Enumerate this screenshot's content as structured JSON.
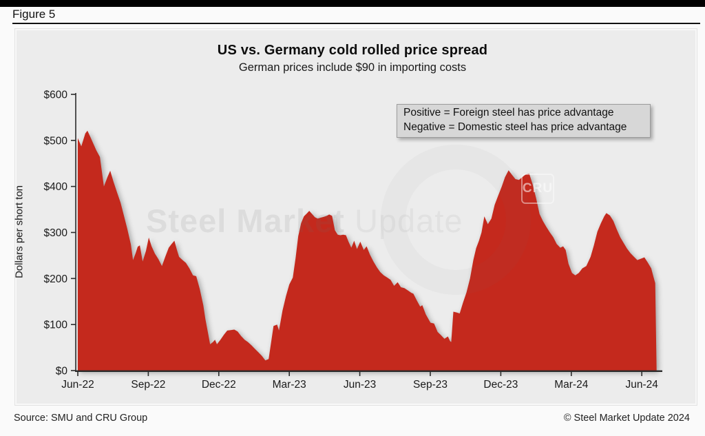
{
  "figure_label": "Figure 5",
  "header": {
    "title": "US vs. Germany cold rolled price spread",
    "subtitle": "German prices include $90 in importing costs"
  },
  "legend_note": {
    "line1": "Positive = Foreign steel has price advantage",
    "line2": "Negative = Domestic steel has price advantage"
  },
  "watermark": {
    "text_bold": "Steel Market",
    "text_light": "Update",
    "badge": "CRU"
  },
  "footer": {
    "source": "Source: SMU and CRU Group",
    "copyright": "© Steel Market Update 2024"
  },
  "chart_data": {
    "type": "area",
    "series_name": "US minus Germany cold rolled price spread",
    "title": "US vs. Germany cold rolled price spread",
    "subtitle": "German prices include $90 in importing costs",
    "ylabel": "Dollars per short ton",
    "ylim": [
      0,
      600
    ],
    "ytick_labels": [
      "$0",
      "$100",
      "$200",
      "$300",
      "$400",
      "$500",
      "$600"
    ],
    "xtick_labels": [
      "Jun-22",
      "Sep-22",
      "Dec-22",
      "Mar-23",
      "Jun-23",
      "Sep-23",
      "Dec-23",
      "Mar-24",
      "Jun-24"
    ],
    "x_unit": "months_since_jun_2022",
    "grid": false,
    "legend_position": "top-right",
    "fill_color": "#c4291d",
    "plot_background": "#ececec",
    "points": [
      [
        0,
        505
      ],
      [
        0.15,
        487
      ],
      [
        0.32,
        515
      ],
      [
        0.41,
        521
      ],
      [
        0.53,
        508
      ],
      [
        0.65,
        494
      ],
      [
        0.79,
        478
      ],
      [
        0.94,
        464
      ],
      [
        1.11,
        400
      ],
      [
        1.26,
        420
      ],
      [
        1.38,
        434
      ],
      [
        1.52,
        410
      ],
      [
        1.67,
        387
      ],
      [
        1.82,
        365
      ],
      [
        1.96,
        337
      ],
      [
        2.11,
        307
      ],
      [
        2.26,
        274
      ],
      [
        2.35,
        240
      ],
      [
        2.46,
        255
      ],
      [
        2.55,
        269
      ],
      [
        2.64,
        272
      ],
      [
        2.76,
        237
      ],
      [
        2.9,
        260
      ],
      [
        3.02,
        289
      ],
      [
        3.14,
        270
      ],
      [
        3.28,
        254
      ],
      [
        3.43,
        242
      ],
      [
        3.58,
        227
      ],
      [
        3.72,
        247
      ],
      [
        3.87,
        267
      ],
      [
        3.99,
        275
      ],
      [
        4.11,
        282
      ],
      [
        4.22,
        262
      ],
      [
        4.31,
        247
      ],
      [
        4.46,
        240
      ],
      [
        4.6,
        234
      ],
      [
        4.75,
        222
      ],
      [
        4.9,
        207
      ],
      [
        5.04,
        205
      ],
      [
        5.19,
        177
      ],
      [
        5.34,
        142
      ],
      [
        5.43,
        112
      ],
      [
        5.54,
        82
      ],
      [
        5.63,
        57
      ],
      [
        5.75,
        62
      ],
      [
        5.84,
        67
      ],
      [
        5.92,
        57
      ],
      [
        6.07,
        67
      ],
      [
        6.22,
        78
      ],
      [
        6.36,
        87
      ],
      [
        6.51,
        88
      ],
      [
        6.66,
        89
      ],
      [
        6.8,
        85
      ],
      [
        6.95,
        75
      ],
      [
        7.1,
        67
      ],
      [
        7.24,
        62
      ],
      [
        7.39,
        55
      ],
      [
        7.54,
        47
      ],
      [
        7.68,
        40
      ],
      [
        7.83,
        32
      ],
      [
        7.98,
        22
      ],
      [
        8.12,
        25
      ],
      [
        8.33,
        97
      ],
      [
        8.48,
        100
      ],
      [
        8.56,
        87
      ],
      [
        8.71,
        130
      ],
      [
        8.86,
        162
      ],
      [
        9,
        187
      ],
      [
        9.15,
        202
      ],
      [
        9.27,
        245
      ],
      [
        9.38,
        292
      ],
      [
        9.5,
        320
      ],
      [
        9.62,
        335
      ],
      [
        9.74,
        341
      ],
      [
        9.85,
        347
      ],
      [
        9.97,
        340
      ],
      [
        10.09,
        333
      ],
      [
        10.21,
        330
      ],
      [
        10.32,
        332
      ],
      [
        10.47,
        334
      ],
      [
        10.59,
        336
      ],
      [
        10.7,
        339
      ],
      [
        10.82,
        336
      ],
      [
        10.94,
        305
      ],
      [
        11.06,
        295
      ],
      [
        11.17,
        294
      ],
      [
        11.29,
        295
      ],
      [
        11.41,
        294
      ],
      [
        11.52,
        280
      ],
      [
        11.64,
        267
      ],
      [
        11.76,
        282
      ],
      [
        11.88,
        264
      ],
      [
        12.02,
        280
      ],
      [
        12.17,
        262
      ],
      [
        12.29,
        270
      ],
      [
        12.43,
        252
      ],
      [
        12.58,
        237
      ],
      [
        12.73,
        224
      ],
      [
        12.87,
        214
      ],
      [
        13.02,
        207
      ],
      [
        13.17,
        202
      ],
      [
        13.31,
        197
      ],
      [
        13.46,
        184
      ],
      [
        13.61,
        192
      ],
      [
        13.75,
        181
      ],
      [
        13.9,
        179
      ],
      [
        14.05,
        174
      ],
      [
        14.19,
        169
      ],
      [
        14.28,
        167
      ],
      [
        14.43,
        152
      ],
      [
        14.57,
        139
      ],
      [
        14.66,
        142
      ],
      [
        14.81,
        122
      ],
      [
        15.01,
        104
      ],
      [
        15.16,
        102
      ],
      [
        15.31,
        84
      ],
      [
        15.45,
        77
      ],
      [
        15.6,
        69
      ],
      [
        15.75,
        74
      ],
      [
        15.84,
        64
      ],
      [
        15.89,
        62
      ],
      [
        15.98,
        128
      ],
      [
        16.13,
        126
      ],
      [
        16.25,
        124
      ],
      [
        16.39,
        147
      ],
      [
        16.54,
        170
      ],
      [
        16.69,
        200
      ],
      [
        16.83,
        240
      ],
      [
        16.95,
        266
      ],
      [
        17.07,
        282
      ],
      [
        17.18,
        300
      ],
      [
        17.3,
        335
      ],
      [
        17.45,
        318
      ],
      [
        17.6,
        330
      ],
      [
        17.74,
        360
      ],
      [
        17.89,
        380
      ],
      [
        18.04,
        400
      ],
      [
        18.18,
        420
      ],
      [
        18.33,
        435
      ],
      [
        18.48,
        425
      ],
      [
        18.62,
        416
      ],
      [
        18.77,
        414
      ],
      [
        18.91,
        420
      ],
      [
        19.06,
        426
      ],
      [
        19.21,
        428
      ],
      [
        19.35,
        405
      ],
      [
        19.5,
        375
      ],
      [
        19.65,
        340
      ],
      [
        19.79,
        325
      ],
      [
        19.94,
        312
      ],
      [
        20.09,
        300
      ],
      [
        20.23,
        290
      ],
      [
        20.38,
        275
      ],
      [
        20.53,
        267
      ],
      [
        20.65,
        270
      ],
      [
        20.76,
        262
      ],
      [
        20.88,
        232
      ],
      [
        21.03,
        212
      ],
      [
        21.17,
        207
      ],
      [
        21.32,
        212
      ],
      [
        21.47,
        222
      ],
      [
        21.64,
        227
      ],
      [
        21.82,
        247
      ],
      [
        21.96,
        272
      ],
      [
        22.11,
        302
      ],
      [
        22.26,
        320
      ],
      [
        22.4,
        335
      ],
      [
        22.49,
        342
      ],
      [
        22.64,
        337
      ],
      [
        22.79,
        325
      ],
      [
        22.93,
        307
      ],
      [
        23.08,
        290
      ],
      [
        23.23,
        277
      ],
      [
        23.37,
        265
      ],
      [
        23.52,
        255
      ],
      [
        23.67,
        247
      ],
      [
        23.81,
        240
      ],
      [
        23.96,
        243
      ],
      [
        24.11,
        246
      ],
      [
        24.25,
        235
      ],
      [
        24.4,
        222
      ],
      [
        24.49,
        205
      ],
      [
        24.57,
        190
      ]
    ]
  }
}
